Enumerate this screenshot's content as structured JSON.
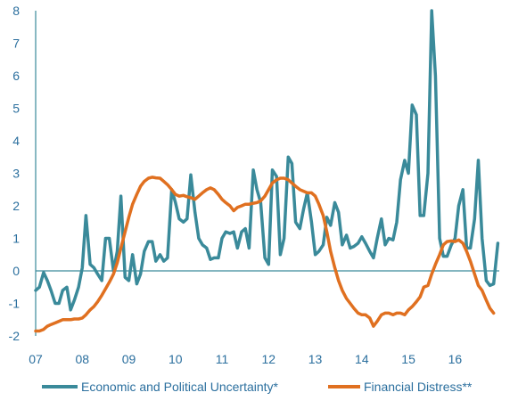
{
  "chart_data": {
    "type": "line",
    "title": "",
    "xlabel": "",
    "ylabel": "",
    "ylim": [
      -2,
      8
    ],
    "xlim": [
      2007,
      2016.95
    ],
    "grid": false,
    "legend_position": "bottom",
    "y_ticks": [
      "-2",
      "-1",
      "0",
      "1",
      "2",
      "3",
      "4",
      "5",
      "6",
      "7",
      "8"
    ],
    "x_ticks": [
      {
        "x": 2007,
        "label": "07"
      },
      {
        "x": 2008,
        "label": "08"
      },
      {
        "x": 2009,
        "label": "09"
      },
      {
        "x": 2010,
        "label": "10"
      },
      {
        "x": 2011,
        "label": "11"
      },
      {
        "x": 2012,
        "label": "12"
      },
      {
        "x": 2013,
        "label": "13"
      },
      {
        "x": 2014,
        "label": "14"
      },
      {
        "x": 2015,
        "label": "15"
      },
      {
        "x": 2016,
        "label": "16"
      }
    ],
    "series": [
      {
        "name": "Economic and Political Uncertainty*",
        "color": "#3a8a9a",
        "points": [
          [
            2007.0,
            -0.6
          ],
          [
            2007.08,
            -0.5
          ],
          [
            2007.17,
            -0.05
          ],
          [
            2007.25,
            -0.3
          ],
          [
            2007.33,
            -0.6
          ],
          [
            2007.42,
            -1.0
          ],
          [
            2007.5,
            -1.0
          ],
          [
            2007.58,
            -0.6
          ],
          [
            2007.67,
            -0.5
          ],
          [
            2007.75,
            -1.2
          ],
          [
            2007.83,
            -0.9
          ],
          [
            2007.92,
            -0.5
          ],
          [
            2008.0,
            0.1
          ],
          [
            2008.08,
            1.7
          ],
          [
            2008.17,
            0.2
          ],
          [
            2008.25,
            0.1
          ],
          [
            2008.33,
            -0.1
          ],
          [
            2008.42,
            -0.3
          ],
          [
            2008.5,
            1.0
          ],
          [
            2008.58,
            1.0
          ],
          [
            2008.67,
            0.0
          ],
          [
            2008.75,
            0.6
          ],
          [
            2008.83,
            2.3
          ],
          [
            2008.92,
            -0.2
          ],
          [
            2009.0,
            -0.3
          ],
          [
            2009.08,
            0.5
          ],
          [
            2009.17,
            -0.4
          ],
          [
            2009.25,
            -0.1
          ],
          [
            2009.33,
            0.6
          ],
          [
            2009.42,
            0.9
          ],
          [
            2009.5,
            0.9
          ],
          [
            2009.58,
            0.3
          ],
          [
            2009.67,
            0.5
          ],
          [
            2009.75,
            0.3
          ],
          [
            2009.83,
            0.4
          ],
          [
            2009.92,
            2.5
          ],
          [
            2010.0,
            2.1
          ],
          [
            2010.08,
            1.6
          ],
          [
            2010.17,
            1.5
          ],
          [
            2010.25,
            1.6
          ],
          [
            2010.33,
            2.95
          ],
          [
            2010.42,
            1.8
          ],
          [
            2010.5,
            1.0
          ],
          [
            2010.58,
            0.8
          ],
          [
            2010.67,
            0.7
          ],
          [
            2010.75,
            0.35
          ],
          [
            2010.83,
            0.4
          ],
          [
            2010.92,
            0.4
          ],
          [
            2011.0,
            1.0
          ],
          [
            2011.08,
            1.2
          ],
          [
            2011.17,
            1.15
          ],
          [
            2011.25,
            1.2
          ],
          [
            2011.33,
            0.7
          ],
          [
            2011.42,
            1.2
          ],
          [
            2011.5,
            1.3
          ],
          [
            2011.58,
            0.7
          ],
          [
            2011.67,
            3.1
          ],
          [
            2011.75,
            2.5
          ],
          [
            2011.83,
            2.1
          ],
          [
            2011.92,
            0.4
          ],
          [
            2012.0,
            0.2
          ],
          [
            2012.08,
            3.1
          ],
          [
            2012.17,
            2.9
          ],
          [
            2012.25,
            0.5
          ],
          [
            2012.33,
            1.0
          ],
          [
            2012.42,
            3.5
          ],
          [
            2012.5,
            3.3
          ],
          [
            2012.58,
            1.5
          ],
          [
            2012.67,
            1.3
          ],
          [
            2012.75,
            1.9
          ],
          [
            2012.83,
            2.4
          ],
          [
            2012.92,
            1.5
          ],
          [
            2013.0,
            0.5
          ],
          [
            2013.08,
            0.6
          ],
          [
            2013.17,
            0.8
          ],
          [
            2013.25,
            1.65
          ],
          [
            2013.33,
            1.4
          ],
          [
            2013.42,
            2.1
          ],
          [
            2013.5,
            1.8
          ],
          [
            2013.58,
            0.8
          ],
          [
            2013.67,
            1.1
          ],
          [
            2013.75,
            0.7
          ],
          [
            2013.83,
            0.75
          ],
          [
            2013.92,
            0.85
          ],
          [
            2014.0,
            1.05
          ],
          [
            2014.08,
            0.85
          ],
          [
            2014.17,
            0.6
          ],
          [
            2014.25,
            0.4
          ],
          [
            2014.33,
            1.0
          ],
          [
            2014.42,
            1.6
          ],
          [
            2014.5,
            0.8
          ],
          [
            2014.58,
            1.0
          ],
          [
            2014.67,
            0.95
          ],
          [
            2014.75,
            1.5
          ],
          [
            2014.83,
            2.8
          ],
          [
            2014.92,
            3.4
          ],
          [
            2015.0,
            3.0
          ],
          [
            2015.08,
            5.1
          ],
          [
            2015.17,
            4.8
          ],
          [
            2015.25,
            1.7
          ],
          [
            2015.33,
            1.7
          ],
          [
            2015.42,
            3.0
          ],
          [
            2015.5,
            8.0
          ],
          [
            2015.58,
            6.0
          ],
          [
            2015.67,
            1.0
          ],
          [
            2015.75,
            0.45
          ],
          [
            2015.83,
            0.45
          ],
          [
            2015.92,
            0.8
          ],
          [
            2016.0,
            1.0
          ],
          [
            2016.08,
            2.0
          ],
          [
            2016.17,
            2.5
          ],
          [
            2016.25,
            0.7
          ],
          [
            2016.33,
            0.7
          ],
          [
            2016.42,
            1.6
          ],
          [
            2016.5,
            3.4
          ],
          [
            2016.58,
            1.0
          ],
          [
            2016.67,
            -0.3
          ],
          [
            2016.75,
            -0.45
          ],
          [
            2016.83,
            -0.4
          ],
          [
            2016.92,
            0.85
          ]
        ]
      },
      {
        "name": "Financial Distress**",
        "color": "#e07020",
        "points": [
          [
            2007.0,
            -1.85
          ],
          [
            2007.08,
            -1.85
          ],
          [
            2007.17,
            -1.8
          ],
          [
            2007.25,
            -1.7
          ],
          [
            2007.33,
            -1.65
          ],
          [
            2007.42,
            -1.6
          ],
          [
            2007.5,
            -1.55
          ],
          [
            2007.58,
            -1.5
          ],
          [
            2007.67,
            -1.5
          ],
          [
            2007.75,
            -1.5
          ],
          [
            2007.83,
            -1.48
          ],
          [
            2007.92,
            -1.48
          ],
          [
            2008.0,
            -1.45
          ],
          [
            2008.08,
            -1.35
          ],
          [
            2008.17,
            -1.2
          ],
          [
            2008.25,
            -1.1
          ],
          [
            2008.33,
            -0.95
          ],
          [
            2008.42,
            -0.75
          ],
          [
            2008.5,
            -0.55
          ],
          [
            2008.58,
            -0.35
          ],
          [
            2008.67,
            -0.1
          ],
          [
            2008.75,
            0.25
          ],
          [
            2008.83,
            0.7
          ],
          [
            2008.92,
            1.2
          ],
          [
            2009.0,
            1.65
          ],
          [
            2009.08,
            2.05
          ],
          [
            2009.17,
            2.35
          ],
          [
            2009.25,
            2.6
          ],
          [
            2009.33,
            2.75
          ],
          [
            2009.42,
            2.85
          ],
          [
            2009.5,
            2.88
          ],
          [
            2009.58,
            2.86
          ],
          [
            2009.67,
            2.85
          ],
          [
            2009.75,
            2.75
          ],
          [
            2009.83,
            2.65
          ],
          [
            2009.92,
            2.5
          ],
          [
            2010.0,
            2.35
          ],
          [
            2010.08,
            2.3
          ],
          [
            2010.17,
            2.32
          ],
          [
            2010.25,
            2.28
          ],
          [
            2010.33,
            2.25
          ],
          [
            2010.42,
            2.2
          ],
          [
            2010.5,
            2.3
          ],
          [
            2010.58,
            2.4
          ],
          [
            2010.67,
            2.5
          ],
          [
            2010.75,
            2.55
          ],
          [
            2010.83,
            2.5
          ],
          [
            2010.92,
            2.35
          ],
          [
            2011.0,
            2.2
          ],
          [
            2011.08,
            2.1
          ],
          [
            2011.17,
            2.0
          ],
          [
            2011.25,
            1.85
          ],
          [
            2011.33,
            1.95
          ],
          [
            2011.42,
            2.0
          ],
          [
            2011.5,
            2.05
          ],
          [
            2011.58,
            2.05
          ],
          [
            2011.67,
            2.08
          ],
          [
            2011.75,
            2.1
          ],
          [
            2011.83,
            2.15
          ],
          [
            2011.92,
            2.3
          ],
          [
            2012.0,
            2.5
          ],
          [
            2012.08,
            2.7
          ],
          [
            2012.17,
            2.8
          ],
          [
            2012.25,
            2.85
          ],
          [
            2012.33,
            2.85
          ],
          [
            2012.42,
            2.8
          ],
          [
            2012.5,
            2.7
          ],
          [
            2012.58,
            2.6
          ],
          [
            2012.67,
            2.5
          ],
          [
            2012.75,
            2.45
          ],
          [
            2012.83,
            2.4
          ],
          [
            2012.92,
            2.4
          ],
          [
            2013.0,
            2.3
          ],
          [
            2013.08,
            2.05
          ],
          [
            2013.17,
            1.7
          ],
          [
            2013.25,
            1.2
          ],
          [
            2013.33,
            0.6
          ],
          [
            2013.42,
            0.1
          ],
          [
            2013.5,
            -0.3
          ],
          [
            2013.58,
            -0.6
          ],
          [
            2013.67,
            -0.85
          ],
          [
            2013.75,
            -1.0
          ],
          [
            2013.83,
            -1.15
          ],
          [
            2013.92,
            -1.3
          ],
          [
            2014.0,
            -1.35
          ],
          [
            2014.08,
            -1.35
          ],
          [
            2014.17,
            -1.45
          ],
          [
            2014.25,
            -1.7
          ],
          [
            2014.33,
            -1.55
          ],
          [
            2014.42,
            -1.35
          ],
          [
            2014.5,
            -1.3
          ],
          [
            2014.58,
            -1.3
          ],
          [
            2014.67,
            -1.35
          ],
          [
            2014.75,
            -1.3
          ],
          [
            2014.83,
            -1.3
          ],
          [
            2014.92,
            -1.35
          ],
          [
            2015.0,
            -1.2
          ],
          [
            2015.08,
            -1.1
          ],
          [
            2015.17,
            -0.95
          ],
          [
            2015.25,
            -0.8
          ],
          [
            2015.33,
            -0.5
          ],
          [
            2015.42,
            -0.45
          ],
          [
            2015.5,
            -0.1
          ],
          [
            2015.58,
            0.2
          ],
          [
            2015.67,
            0.5
          ],
          [
            2015.75,
            0.8
          ],
          [
            2015.83,
            0.9
          ],
          [
            2015.92,
            0.92
          ],
          [
            2016.0,
            0.9
          ],
          [
            2016.08,
            0.95
          ],
          [
            2016.17,
            0.85
          ],
          [
            2016.25,
            0.6
          ],
          [
            2016.33,
            0.3
          ],
          [
            2016.42,
            -0.1
          ],
          [
            2016.5,
            -0.45
          ],
          [
            2016.58,
            -0.6
          ],
          [
            2016.67,
            -0.9
          ],
          [
            2016.75,
            -1.15
          ],
          [
            2016.83,
            -1.3
          ]
        ]
      }
    ]
  }
}
